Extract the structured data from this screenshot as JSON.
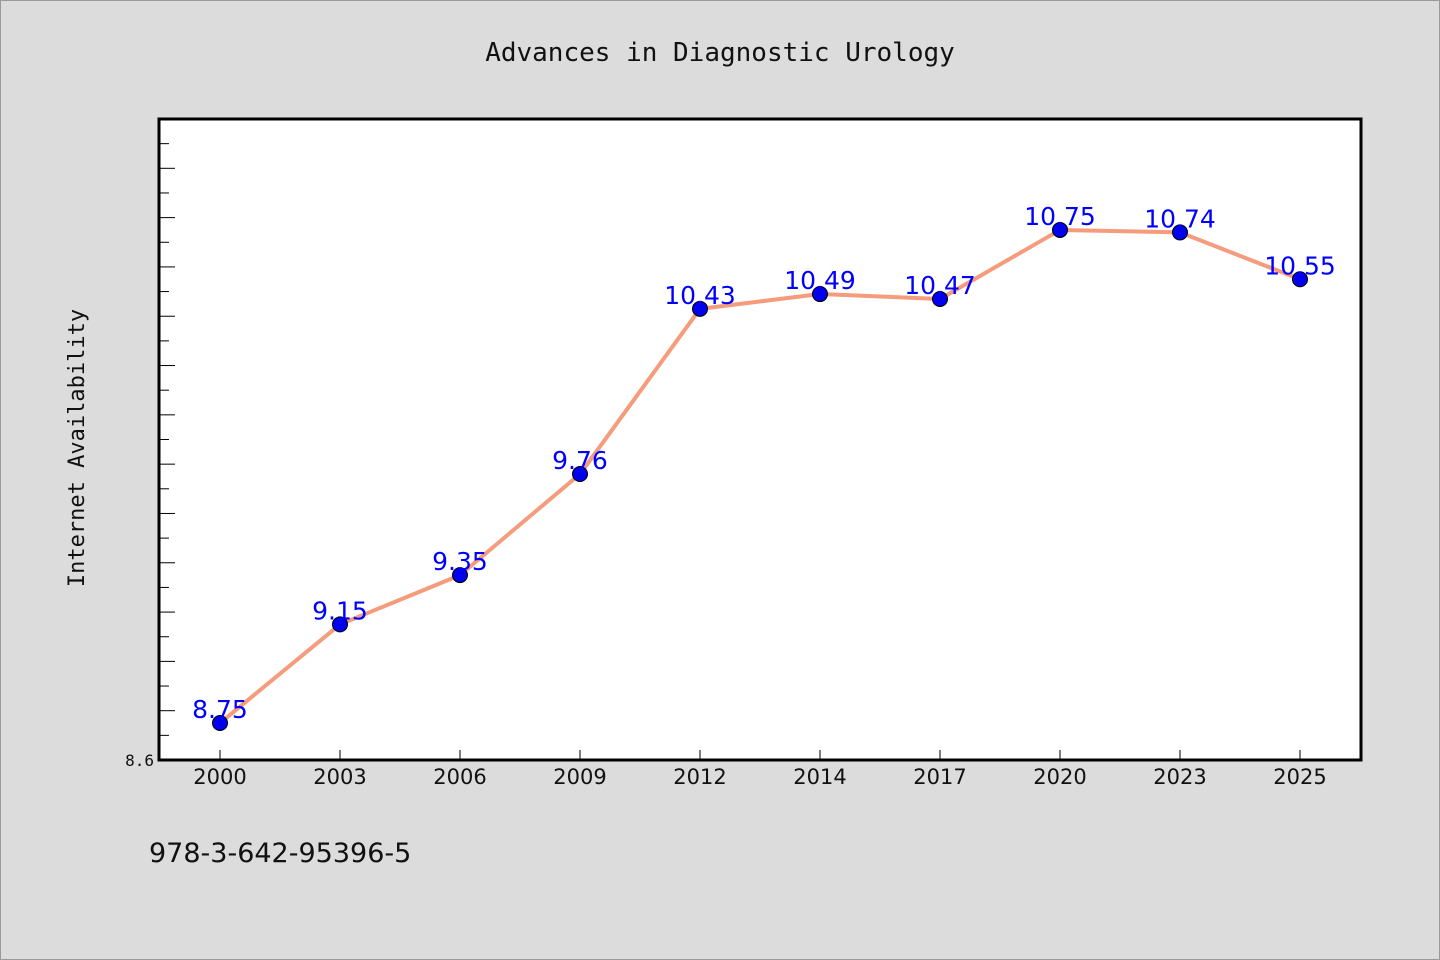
{
  "chart_data": {
    "type": "line",
    "title": "Advances in Diagnostic Urology",
    "xlabel": "",
    "ylabel": "Internet Availability",
    "categories": [
      "2000",
      "2003",
      "2006",
      "2009",
      "2012",
      "2014",
      "2017",
      "2020",
      "2023",
      "2025"
    ],
    "values": [
      8.75,
      9.15,
      9.35,
      9.76,
      10.43,
      10.49,
      10.47,
      10.75,
      10.74,
      10.55
    ],
    "data_labels": [
      "8.75",
      "9.15",
      "9.35",
      "9.76",
      "10.43",
      "10.49",
      "10.47",
      "10.75",
      "10.74",
      "10.55"
    ],
    "ylim": [
      8.6,
      11.2
    ],
    "yticks_labeled": [
      "8.6"
    ],
    "grid": false,
    "legend": "none",
    "colors": {
      "line": "#f59c7c",
      "marker": "#0000ee",
      "label": "#0000ff",
      "plot_bg": "#ffffff",
      "page_bg": "#dcdcdc"
    }
  },
  "footer": {
    "isbn": "978-3-642-95396-5"
  }
}
